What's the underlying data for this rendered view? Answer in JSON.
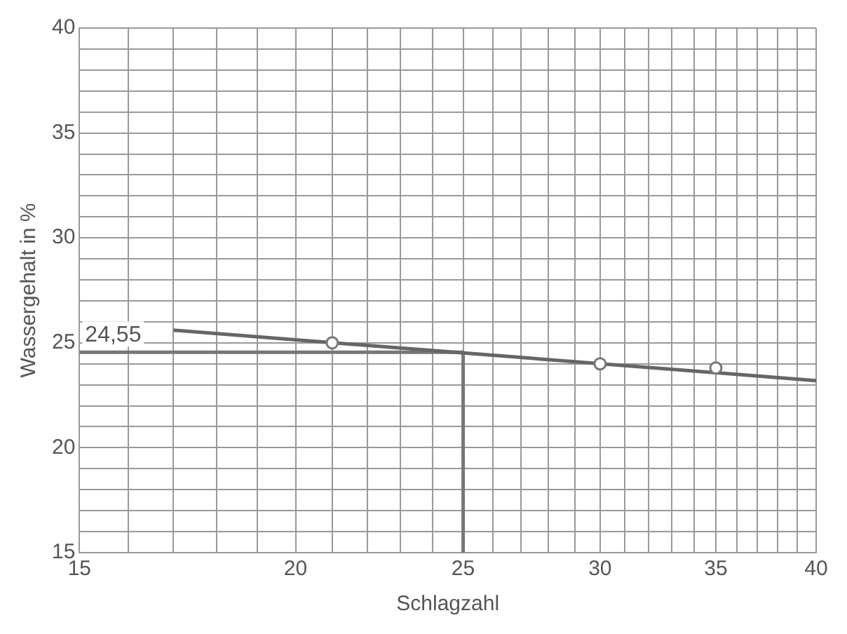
{
  "chart_data": {
    "type": "scatter",
    "xlabel": "Schlagzahl",
    "ylabel": "Wassergehalt in %",
    "log": "x",
    "grid": true,
    "marker": "circle",
    "xlim": [
      15,
      40
    ],
    "ylim": [
      15,
      40
    ],
    "xticks": [
      15,
      {
        "value": 16,
        "label": null
      },
      {
        "value": 17,
        "label": null
      },
      {
        "value": 18,
        "label": null
      },
      {
        "value": 19,
        "label": null
      },
      20,
      {
        "value": 21,
        "label": null
      },
      {
        "value": 22,
        "label": null
      },
      {
        "value": 23,
        "label": null
      },
      {
        "value": 24,
        "label": null
      },
      25,
      {
        "value": 26,
        "label": null
      },
      {
        "value": 27,
        "label": null
      },
      {
        "value": 28,
        "label": null
      },
      {
        "value": 29,
        "label": null
      },
      30,
      {
        "value": 31,
        "label": null
      },
      {
        "value": 32,
        "label": null
      },
      {
        "value": 33,
        "label": null
      },
      {
        "value": 34,
        "label": null
      },
      35,
      {
        "value": 36,
        "label": null
      },
      {
        "value": 37,
        "label": null
      },
      {
        "value": 38,
        "label": null
      },
      {
        "value": 39,
        "label": null
      },
      40
    ],
    "yticks": [
      15,
      {
        "value": 16,
        "label": null
      },
      {
        "value": 17,
        "label": null
      },
      {
        "value": 18,
        "label": null
      },
      {
        "value": 19,
        "label": null
      },
      20,
      {
        "value": 21,
        "label": null
      },
      {
        "value": 22,
        "label": null
      },
      {
        "value": 23,
        "label": null
      },
      {
        "value": 24,
        "label": null
      },
      25,
      {
        "value": 26,
        "label": null
      },
      {
        "value": 27,
        "label": null
      },
      {
        "value": 28,
        "label": null
      },
      {
        "value": 29,
        "label": null
      },
      30,
      {
        "value": 31,
        "label": null
      },
      {
        "value": 32,
        "label": null
      },
      {
        "value": 33,
        "label": null
      },
      {
        "value": 34,
        "label": null
      },
      35,
      {
        "value": 36,
        "label": null
      },
      {
        "value": 37,
        "label": null
      },
      {
        "value": 38,
        "label": null
      },
      {
        "value": 39,
        "label": null
      },
      40
    ],
    "series": [
      {
        "type": "scatter",
        "color": "#777777",
        "x": [
          21,
          30,
          35
        ],
        "values": [
          25.0,
          24.0,
          23.8
        ]
      },
      {
        "type": "line",
        "color": "#666666",
        "marker": "none",
        "x": [
          17,
          40
        ],
        "values": [
          25.6,
          23.2
        ]
      },
      {
        "type": "line",
        "color": "#777777",
        "marker": "none",
        "x": [
          15,
          25,
          25
        ],
        "values": [
          24.55,
          24.55,
          15
        ]
      }
    ],
    "annotations": [
      {
        "text": "24,55",
        "x": 15,
        "y": 24.55
      }
    ]
  }
}
